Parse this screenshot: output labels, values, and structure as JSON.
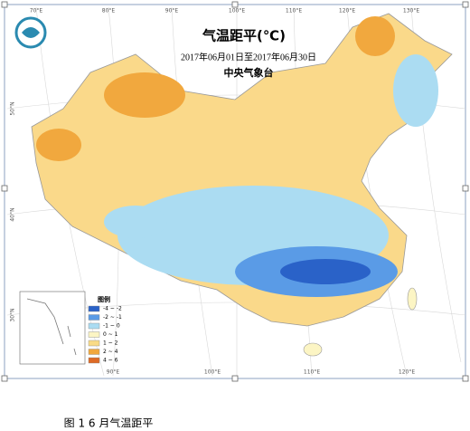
{
  "map": {
    "title": "气温距平(℃)",
    "date_range": "2017年06月01日至2017年06月30日",
    "issuer": "中央气象台",
    "legend": {
      "title": "图例",
      "items": [
        {
          "label": "-4 ~ -2",
          "color": "#2a62c8"
        },
        {
          "label": "-2 ~ -1",
          "color": "#5a9be6"
        },
        {
          "label": "-1 ~ 0",
          "color": "#abdcf2"
        },
        {
          "label": "0 ~ 1",
          "color": "#fcf5c4"
        },
        {
          "label": "1 ~ 2",
          "color": "#f9db86"
        },
        {
          "label": "2 ~ 4",
          "color": "#f1a83e"
        },
        {
          "label": "4 ~ 6",
          "color": "#de6a26"
        }
      ]
    },
    "top_lon_labels": [
      "70°E",
      "80°E",
      "90°E",
      "100°E",
      "110°E",
      "120°E",
      "130°E"
    ],
    "bottom_lon_labels": [
      "90°E",
      "100°E",
      "110°E",
      "120°E"
    ],
    "lat_labels": [
      "50°N",
      "40°N",
      "30°N"
    ]
  },
  "caption": "图 1 6 月气温距平"
}
